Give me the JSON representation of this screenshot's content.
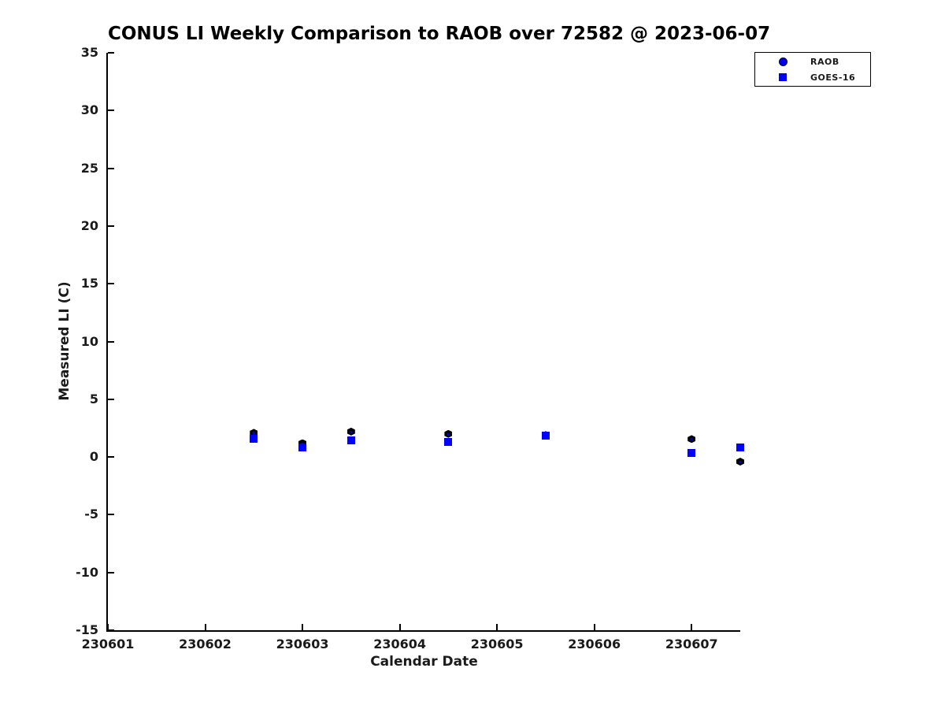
{
  "title": "CONUS LI Weekly Comparison to RAOB over 72582 @ 2023-06-07",
  "chart_data": {
    "type": "scatter",
    "title": "CONUS LI Weekly Comparison to RAOB over 72582 @ 2023-06-07",
    "xlabel": "Calendar Date",
    "ylabel": "Measured LI (C)",
    "xlim": [
      230601,
      230607.5
    ],
    "ylim": [
      -15,
      35
    ],
    "x_ticks": [
      230601,
      230602,
      230603,
      230604,
      230605,
      230606,
      230607
    ],
    "y_ticks": [
      35,
      30,
      25,
      20,
      15,
      10,
      5,
      0,
      -5,
      -10,
      -15
    ],
    "grid": false,
    "legend_position": "top-right-outside",
    "series": [
      {
        "name": "RAOB",
        "marker": "hexagon",
        "fill_color": "#0000ff",
        "edge_color": "#000000",
        "x": [
          230602.5,
          230603.0,
          230603.5,
          230604.5,
          230605.5,
          230607.0,
          230607.5
        ],
        "y": [
          2.1,
          1.2,
          2.2,
          2.0,
          1.9,
          1.55,
          -0.4
        ]
      },
      {
        "name": "GOES-16",
        "marker": "square",
        "fill_color": "#0000ff",
        "edge_color": "#0000ff",
        "x": [
          230602.5,
          230603.0,
          230603.5,
          230604.5,
          230605.5,
          230607.0,
          230607.5
        ],
        "y": [
          1.6,
          0.85,
          1.45,
          1.3,
          1.85,
          0.35,
          0.8
        ]
      }
    ]
  },
  "legend": {
    "items": [
      {
        "label": "RAOB",
        "marker": "circle"
      },
      {
        "label": "GOES-16",
        "marker": "square"
      }
    ]
  },
  "colors": {
    "marker_blue": "#0000ff",
    "marker_edge": "#000000",
    "axis": "#000000",
    "text": "#1a1a1a",
    "background": "#ffffff"
  }
}
